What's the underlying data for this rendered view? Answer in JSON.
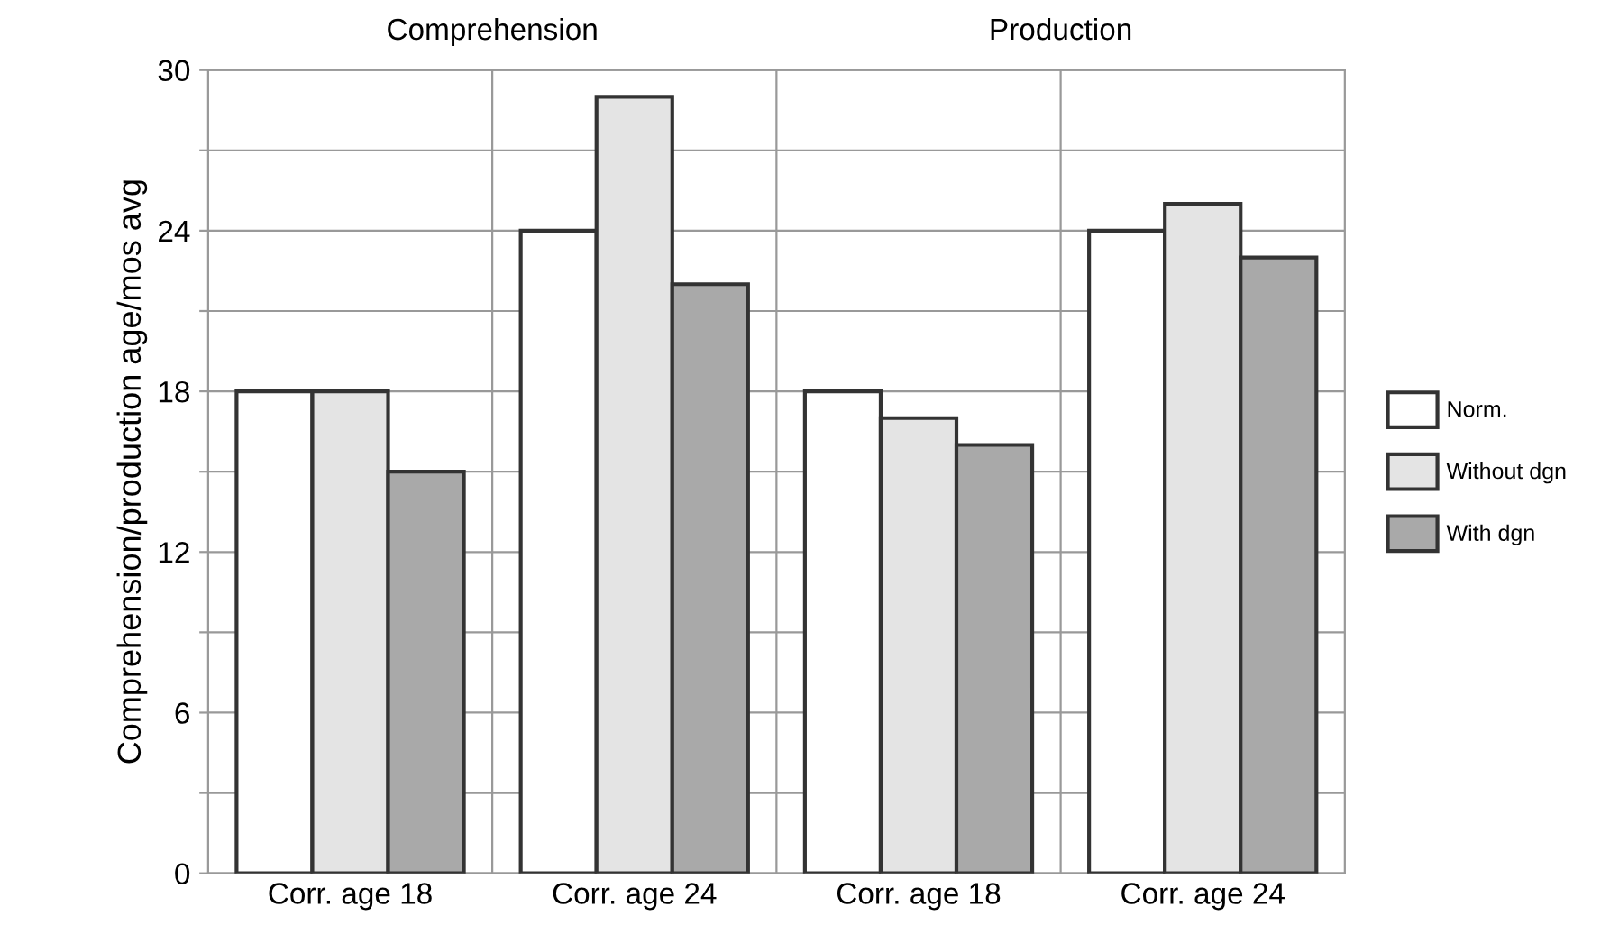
{
  "chart_data": {
    "type": "bar",
    "ylabel": "Comprehension/production age/mos avg",
    "annotations": [
      "Comprehension",
      "Production"
    ],
    "categories": [
      "Corr. age 18",
      "Corr. age 24",
      "Corr. age 18",
      "Corr. age 24"
    ],
    "series": [
      {
        "name": "Norm.",
        "color": "#ffffff",
        "values": [
          18,
          24,
          18,
          24
        ]
      },
      {
        "name": "Without dgn",
        "color": "#e4e4e4",
        "values": [
          18,
          29,
          17,
          25
        ]
      },
      {
        "name": "With dgn",
        "color": "#a9a9a9",
        "values": [
          15,
          22,
          16,
          23
        ]
      }
    ],
    "ylim": [
      0,
      30
    ],
    "yticks": [
      0,
      {
        "value": 3,
        "label": null
      },
      6,
      {
        "value": 9,
        "label": null
      },
      12,
      {
        "value": 15,
        "label": null
      },
      18,
      {
        "value": 21,
        "label": null
      },
      24,
      {
        "value": 27,
        "label": null
      },
      30
    ],
    "grid": true,
    "legend": "right"
  }
}
